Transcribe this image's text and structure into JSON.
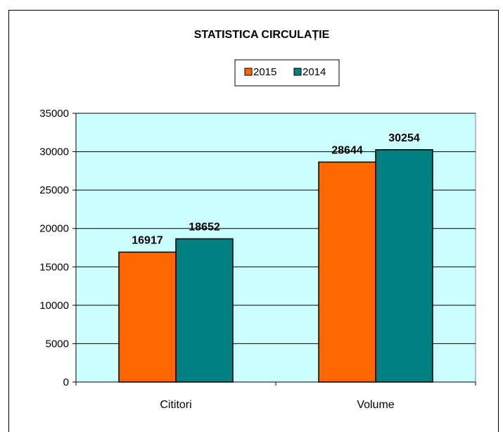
{
  "chart_data": {
    "type": "bar",
    "title": "STATISTICA CIRCULAȚIE",
    "categories": [
      "Cititori",
      "Volume"
    ],
    "series": [
      {
        "name": "2015",
        "values": [
          16917,
          28644
        ],
        "color": "#FF6600"
      },
      {
        "name": "2014",
        "values": [
          18652,
          30254
        ],
        "color": "#008080"
      }
    ],
    "ylim": [
      0,
      35000
    ],
    "yticks": [
      0,
      5000,
      10000,
      15000,
      20000,
      25000,
      30000,
      35000
    ],
    "ytick_labels": [
      "0",
      "5000",
      "10000",
      "15000",
      "20000",
      "25000",
      "30000",
      "35000"
    ],
    "value_labels": [
      [
        "16917",
        "28644"
      ],
      [
        "18652",
        "30254"
      ]
    ],
    "legend_position": "top-center",
    "grid": true,
    "plot_background": "#CCFFFF"
  }
}
